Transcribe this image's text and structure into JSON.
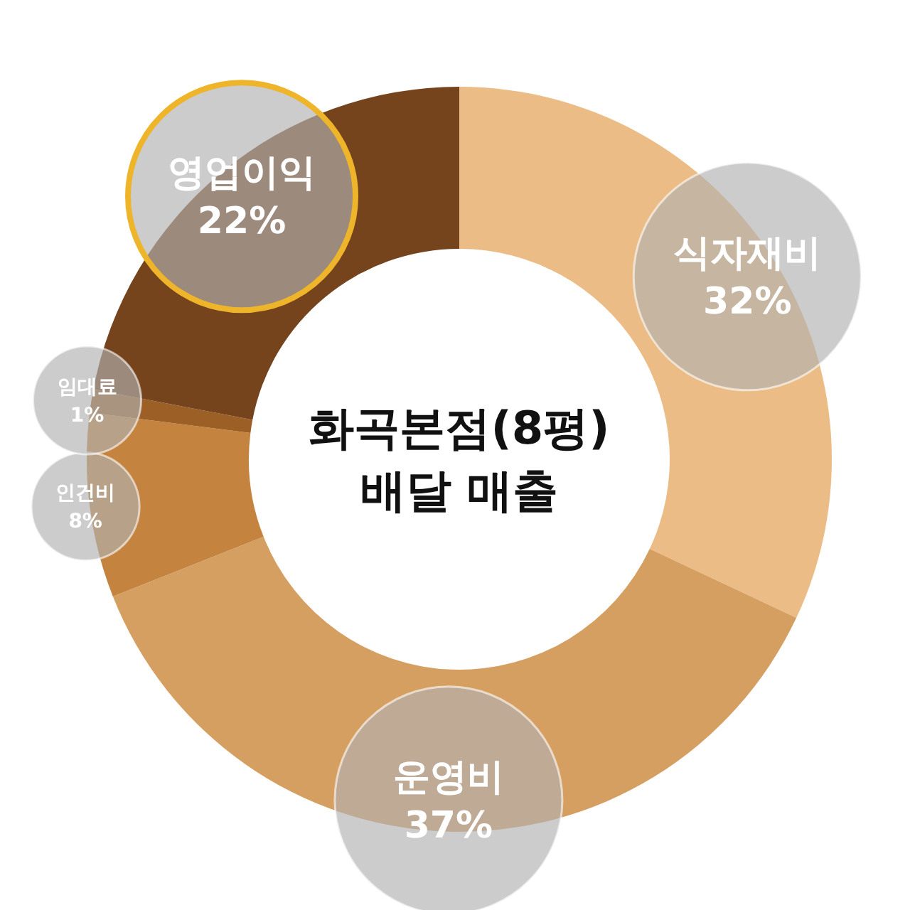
{
  "chart_data": {
    "type": "donut",
    "title": "화곡본점(8평)\n배달 매출",
    "categories": [
      "식자재비",
      "운영비",
      "인건비",
      "임대료",
      "영업이익"
    ],
    "values": [
      32,
      37,
      8,
      1,
      22
    ],
    "colors": [
      "#ebbc85",
      "#d69f62",
      "#c4843f",
      "#9c5f25",
      "#75441c"
    ],
    "value_labels": [
      "32%",
      "37%",
      "8%",
      "1%",
      "22%"
    ]
  }
}
